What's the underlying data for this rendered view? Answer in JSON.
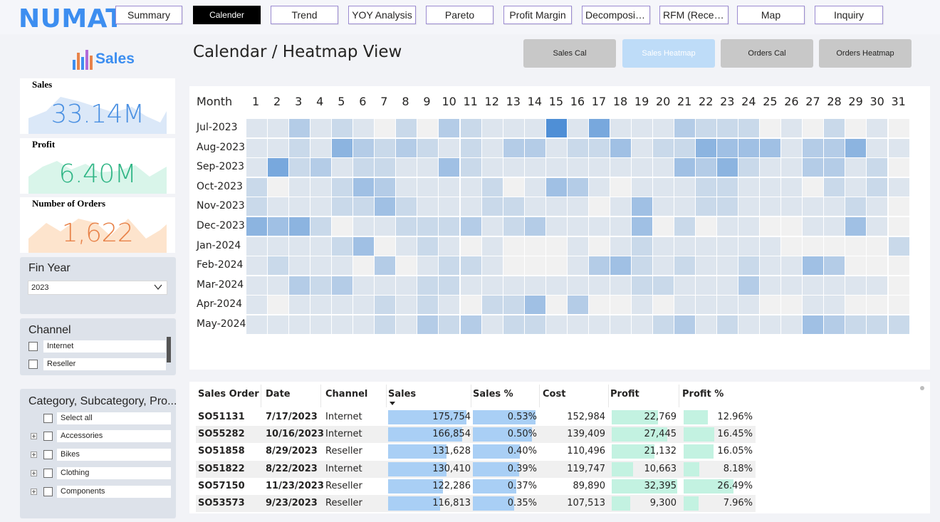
{
  "app": {
    "logo": "NUMAT",
    "brand_label": "Sales",
    "accent": "#3d8ef0"
  },
  "nav": [
    {
      "label": "Summary",
      "active": false
    },
    {
      "label": "Calender",
      "active": true
    },
    {
      "label": "Trend",
      "active": false
    },
    {
      "label": "YOY Analysis",
      "active": false
    },
    {
      "label": "Pareto",
      "active": false
    },
    {
      "label": "Profit Margin",
      "active": false
    },
    {
      "label": "Decompositi...",
      "active": false
    },
    {
      "label": "RFM (Recenc...",
      "active": false
    },
    {
      "label": "Map",
      "active": false
    },
    {
      "label": "Inquiry",
      "active": false
    }
  ],
  "kpis": [
    {
      "title": "Sales",
      "value": "33.14M",
      "color": "#4a90e2",
      "fill": "#dbe8f8",
      "icon": "area-sparkline-icon"
    },
    {
      "title": "Profit",
      "value": "6.40M",
      "color": "#2fb585",
      "fill": "#d9f5ea",
      "icon": "area-sparkline-icon"
    },
    {
      "title": "Number of Orders",
      "value": "1,622",
      "color": "#e8834a",
      "fill": "#fde4cd",
      "icon": "area-sparkline-icon"
    }
  ],
  "fin_year": {
    "title": "Fin Year",
    "selected": "2023",
    "icon": "chevron-down-icon"
  },
  "channel": {
    "title": "Channel",
    "options": [
      "Internet",
      "Reseller"
    ]
  },
  "category": {
    "title": "Category, Subcategory, Pro...",
    "select_all": "Select all",
    "options": [
      "Accessories",
      "Bikes",
      "Clothing",
      "Components"
    ]
  },
  "page_title": "Calendar / Heatmap View",
  "view_buttons": [
    {
      "label": "Sales Cal",
      "selected": false
    },
    {
      "label": "Sales Heatmap",
      "selected": true
    },
    {
      "label": "Orders Cal",
      "selected": false
    },
    {
      "label": "Orders Heatmap",
      "selected": false
    }
  ],
  "chart_data": {
    "type": "heatmap",
    "row_header": "Month",
    "columns": [
      "1",
      "2",
      "3",
      "4",
      "5",
      "6",
      "7",
      "8",
      "9",
      "10",
      "11",
      "12",
      "13",
      "14",
      "15",
      "16",
      "17",
      "18",
      "19",
      "20",
      "21",
      "22",
      "23",
      "24",
      "25",
      "26",
      "27",
      "28",
      "29",
      "30",
      "31"
    ],
    "rows": [
      "Jul-2023",
      "Aug-2023",
      "Sep-2023",
      "Oct-2023",
      "Nov-2023",
      "Dec-2023",
      "Jan-2024",
      "Feb-2024",
      "Mar-2024",
      "Apr-2024",
      "May-2024"
    ],
    "values": [
      [
        2,
        2,
        4,
        2,
        3,
        2,
        1,
        3,
        1,
        4,
        3,
        2,
        2,
        2,
        9,
        2,
        7,
        2,
        2,
        2,
        4,
        3,
        3,
        3,
        1,
        2,
        1,
        3,
        1,
        2,
        1
      ],
      [
        2,
        2,
        3,
        2,
        6,
        4,
        3,
        4,
        3,
        2,
        3,
        2,
        4,
        4,
        2,
        3,
        3,
        5,
        2,
        3,
        3,
        6,
        5,
        5,
        5,
        2,
        4,
        4,
        6,
        2,
        2
      ],
      [
        2,
        7,
        3,
        4,
        2,
        3,
        3,
        2,
        2,
        5,
        3,
        2,
        2,
        2,
        2,
        2,
        2,
        2,
        2,
        2,
        5,
        4,
        6,
        3,
        2,
        2,
        4,
        4,
        2,
        3,
        1
      ],
      [
        3,
        1,
        2,
        2,
        3,
        5,
        4,
        2,
        2,
        2,
        2,
        3,
        1,
        2,
        5,
        4,
        2,
        1,
        2,
        2,
        2,
        3,
        3,
        2,
        2,
        2,
        1,
        3,
        2,
        3,
        2
      ],
      [
        3,
        2,
        2,
        2,
        3,
        3,
        5,
        3,
        2,
        2,
        2,
        3,
        3,
        2,
        2,
        2,
        1,
        2,
        5,
        2,
        2,
        3,
        3,
        2,
        2,
        2,
        2,
        2,
        3,
        2,
        1
      ],
      [
        6,
        5,
        6,
        3,
        1,
        2,
        2,
        3,
        3,
        3,
        4,
        2,
        3,
        4,
        2,
        2,
        2,
        2,
        5,
        1,
        3,
        1,
        2,
        2,
        1,
        1,
        2,
        2,
        5,
        2,
        1
      ],
      [
        2,
        2,
        2,
        2,
        3,
        5,
        1,
        2,
        3,
        2,
        1,
        2,
        1,
        1,
        1,
        2,
        1,
        2,
        3,
        2,
        2,
        2,
        2,
        2,
        2,
        1,
        1,
        1,
        1,
        1,
        3
      ],
      [
        2,
        3,
        2,
        2,
        2,
        1,
        4,
        1,
        2,
        3,
        3,
        2,
        1,
        1,
        1,
        2,
        4,
        5,
        3,
        2,
        3,
        2,
        2,
        3,
        2,
        2,
        5,
        4,
        1,
        1,
        1
      ],
      [
        2,
        2,
        4,
        3,
        4,
        2,
        2,
        2,
        3,
        3,
        2,
        2,
        2,
        2,
        2,
        2,
        2,
        2,
        3,
        3,
        2,
        2,
        2,
        4,
        2,
        2,
        2,
        2,
        2,
        2,
        1
      ],
      [
        2,
        1,
        2,
        2,
        2,
        2,
        3,
        2,
        3,
        2,
        1,
        3,
        3,
        5,
        1,
        4,
        1,
        1,
        2,
        1,
        2,
        2,
        2,
        2,
        1,
        1,
        2,
        2,
        1,
        1,
        1
      ],
      [
        2,
        2,
        2,
        2,
        2,
        2,
        3,
        2,
        4,
        3,
        4,
        2,
        3,
        3,
        2,
        2,
        2,
        2,
        2,
        3,
        4,
        2,
        3,
        2,
        2,
        2,
        5,
        4,
        3,
        3,
        3
      ]
    ]
  },
  "table": {
    "columns": [
      "Sales Order",
      "Date",
      "Channel",
      "Sales",
      "Sales %",
      "Cost",
      "Profit",
      "Profit %"
    ],
    "sort_icon": "sort-descending-icon",
    "rows": [
      {
        "order": "SO51131",
        "date": "7/17/2023",
        "channel": "Internet",
        "sales": "175,754",
        "sales_v": 175754,
        "sales_pct": "0.53%",
        "sales_pct_v": 0.53,
        "cost": "152,984",
        "profit": "22,769",
        "profit_v": 22769,
        "profit_pct": "12.96%",
        "profit_pct_v": 12.96
      },
      {
        "order": "SO55282",
        "date": "10/16/2023",
        "channel": "Internet",
        "sales": "166,854",
        "sales_v": 166854,
        "sales_pct": "0.50%",
        "sales_pct_v": 0.5,
        "cost": "139,409",
        "profit": "27,445",
        "profit_v": 27445,
        "profit_pct": "16.45%",
        "profit_pct_v": 16.45
      },
      {
        "order": "SO51858",
        "date": "8/29/2023",
        "channel": "Reseller",
        "sales": "131,628",
        "sales_v": 131628,
        "sales_pct": "0.40%",
        "sales_pct_v": 0.4,
        "cost": "110,496",
        "profit": "21,132",
        "profit_v": 21132,
        "profit_pct": "16.05%",
        "profit_pct_v": 16.05
      },
      {
        "order": "SO51822",
        "date": "8/22/2023",
        "channel": "Internet",
        "sales": "130,410",
        "sales_v": 130410,
        "sales_pct": "0.39%",
        "sales_pct_v": 0.39,
        "cost": "119,747",
        "profit": "10,663",
        "profit_v": 10663,
        "profit_pct": "8.18%",
        "profit_pct_v": 8.18
      },
      {
        "order": "SO57150",
        "date": "11/23/2023",
        "channel": "Reseller",
        "sales": "122,286",
        "sales_v": 122286,
        "sales_pct": "0.37%",
        "sales_pct_v": 0.37,
        "cost": "89,890",
        "profit": "32,395",
        "profit_v": 32395,
        "profit_pct": "26.49%",
        "profit_pct_v": 26.49
      },
      {
        "order": "SO53573",
        "date": "9/23/2023",
        "channel": "Reseller",
        "sales": "116,813",
        "sales_v": 116813,
        "sales_pct": "0.35%",
        "sales_pct_v": 0.35,
        "cost": "107,513",
        "profit": "9,300",
        "profit_v": 9300,
        "profit_pct": "7.96%",
        "profit_pct_v": 7.96
      }
    ]
  },
  "colors": {
    "sales_bar": "#a9cff5",
    "profit_bar": "#c3f2e1",
    "heat_low": "#f1f1f1",
    "heat_high": "#4f8fd6"
  }
}
